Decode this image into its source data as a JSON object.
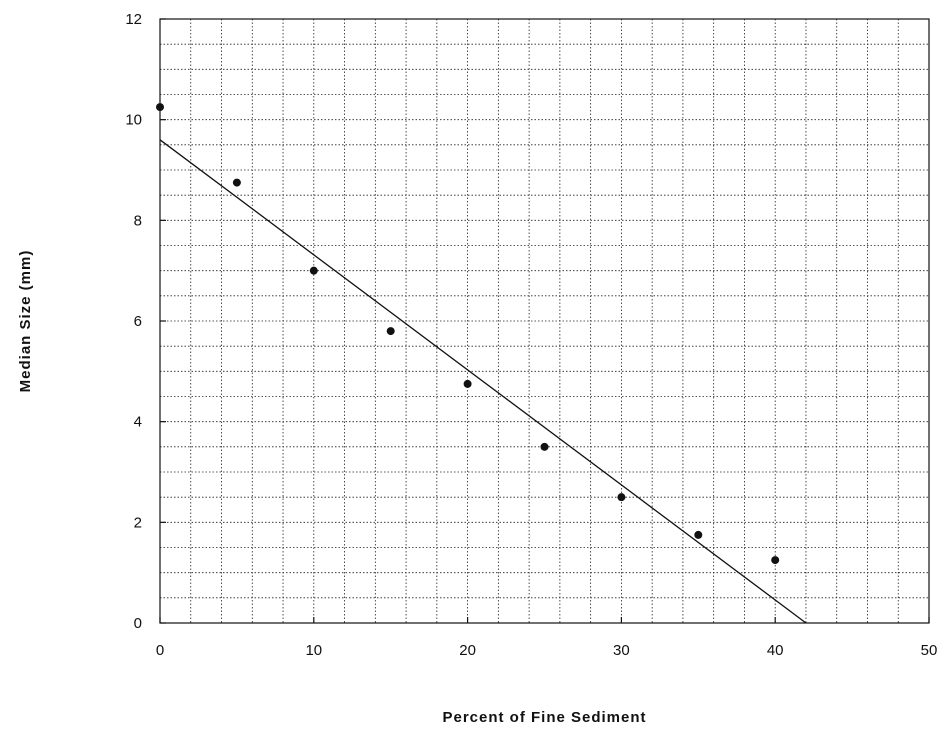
{
  "chart_data": {
    "type": "scatter",
    "title": "",
    "xlabel": "Percent of Fine Sediment",
    "ylabel": "Median Size (mm)",
    "xlim": [
      0,
      50
    ],
    "ylim": [
      0,
      12
    ],
    "x_ticks": [
      0,
      10,
      20,
      30,
      40,
      50
    ],
    "y_ticks": [
      0,
      2,
      4,
      6,
      8,
      10,
      12
    ],
    "grid": true,
    "legend": "none",
    "series": [
      {
        "x": [
          0,
          5,
          10,
          15,
          20,
          25,
          30,
          35,
          40
        ],
        "y": [
          10.25,
          8.75,
          7.0,
          5.8,
          4.75,
          3.5,
          2.5,
          1.75,
          1.25
        ]
      }
    ],
    "fit_line": {
      "x": [
        0,
        42
      ],
      "y": [
        9.6,
        0
      ]
    }
  }
}
